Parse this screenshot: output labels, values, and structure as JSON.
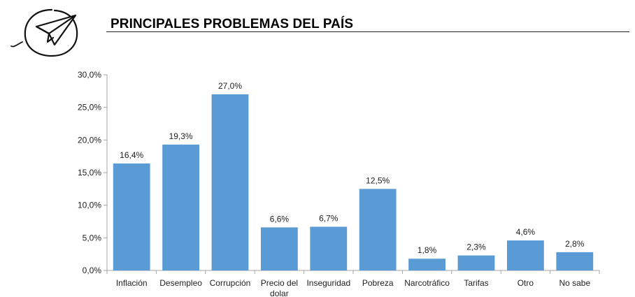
{
  "header": {
    "title": "PRINCIPALES PROBLEMAS DEL PAÍS",
    "logo_icon": "paper-plane-icon"
  },
  "chart_data": {
    "type": "bar",
    "categories": [
      "Inflación",
      "Desempleo",
      "Corrupción",
      "Precio del\ndolar",
      "Inseguridad",
      "Pobreza",
      "Narcotráfico",
      "Tarifas",
      "Otro",
      "No sabe"
    ],
    "values": [
      16.4,
      19.3,
      27.0,
      6.6,
      6.7,
      12.5,
      1.8,
      2.3,
      4.6,
      2.8
    ],
    "value_labels": [
      "16,4%",
      "19,3%",
      "27,0%",
      "6,6%",
      "6,7%",
      "12,5%",
      "1,8%",
      "2,3%",
      "4,6%",
      "2,8%"
    ],
    "y_ticks": [
      0,
      5,
      10,
      15,
      20,
      25,
      30
    ],
    "y_tick_labels": [
      "0,0%",
      "5,0%",
      "10,0%",
      "15,0%",
      "20,0%",
      "25,0%",
      "30,0%"
    ],
    "ylim": [
      0,
      30
    ],
    "grid": false,
    "bar_color": "#5b9bd5",
    "axis_color": "#a6a6a6"
  }
}
